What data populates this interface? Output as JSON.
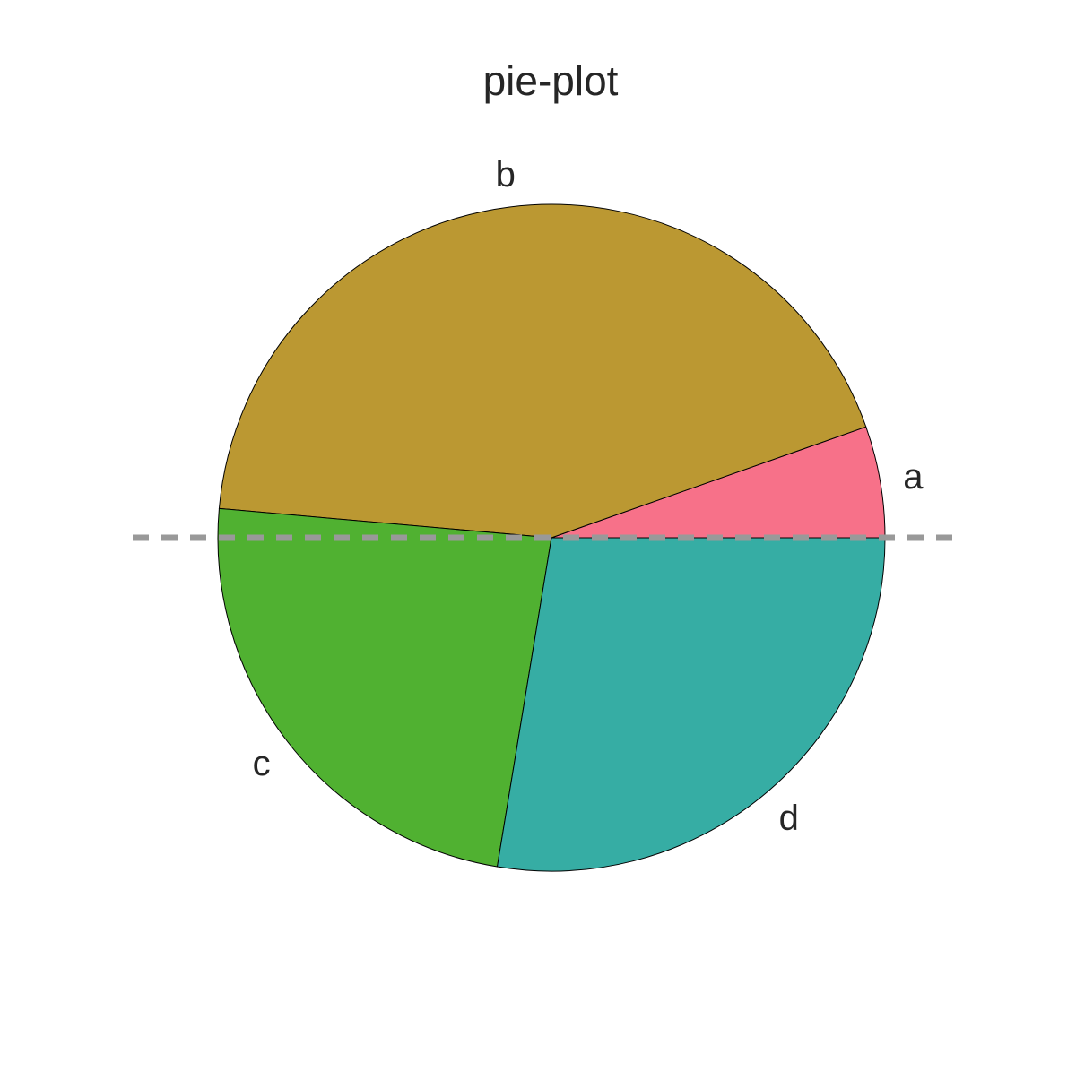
{
  "chart_data": {
    "type": "pie",
    "title": "pie-plot",
    "categories": [
      "a",
      "b",
      "c",
      "d"
    ],
    "values": [
      5.4,
      43.2,
      23.8,
      27.6
    ],
    "colors": [
      "#f77189",
      "#bb9832",
      "#50b131",
      "#36ada4"
    ],
    "start_angle_deg": 0,
    "direction": "counterclockwise",
    "reference_line": {
      "style": "dashed",
      "color": "#999999",
      "y": 0
    }
  }
}
